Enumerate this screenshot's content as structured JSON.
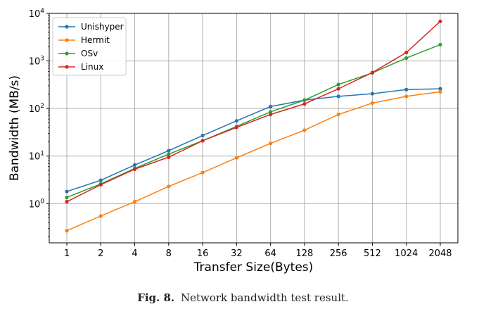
{
  "caption": {
    "label": "Fig. 8.",
    "text": "Network bandwidth test result."
  },
  "chart_data": {
    "type": "line",
    "xlabel": "Transfer Size(Bytes)",
    "ylabel": "Bandwidth (MB/s)",
    "yscale": "log",
    "ylim": [
      0.15,
      10000
    ],
    "y_ticks": [
      1,
      10,
      100,
      1000,
      10000
    ],
    "y_tick_labels": [
      {
        "base": "10",
        "exp": "0"
      },
      {
        "base": "10",
        "exp": "1"
      },
      {
        "base": "10",
        "exp": "2"
      },
      {
        "base": "10",
        "exp": "3"
      },
      {
        "base": "10",
        "exp": "4"
      }
    ],
    "categories": [
      "1",
      "2",
      "4",
      "8",
      "16",
      "32",
      "64",
      "128",
      "256",
      "512",
      "1024",
      "2048"
    ],
    "grid": true,
    "legend_position": "top-left",
    "series": [
      {
        "name": "Unishyper",
        "color": "#1f77b4",
        "values": [
          1.8,
          3.1,
          6.5,
          13,
          27,
          55,
          110,
          150,
          180,
          205,
          250,
          260
        ]
      },
      {
        "name": "Hermit",
        "color": "#ff7f0e",
        "values": [
          0.27,
          0.55,
          1.1,
          2.3,
          4.5,
          9.2,
          18.5,
          35,
          75,
          130,
          180,
          225
        ]
      },
      {
        "name": "OSv",
        "color": "#2ca02c",
        "values": [
          1.35,
          2.6,
          5.5,
          11,
          21,
          42,
          85,
          150,
          320,
          560,
          1150,
          2200
        ]
      },
      {
        "name": "Linux",
        "color": "#d62728",
        "values": [
          1.1,
          2.5,
          5.3,
          9.5,
          21,
          40,
          75,
          125,
          260,
          570,
          1500,
          6800
        ]
      }
    ]
  }
}
